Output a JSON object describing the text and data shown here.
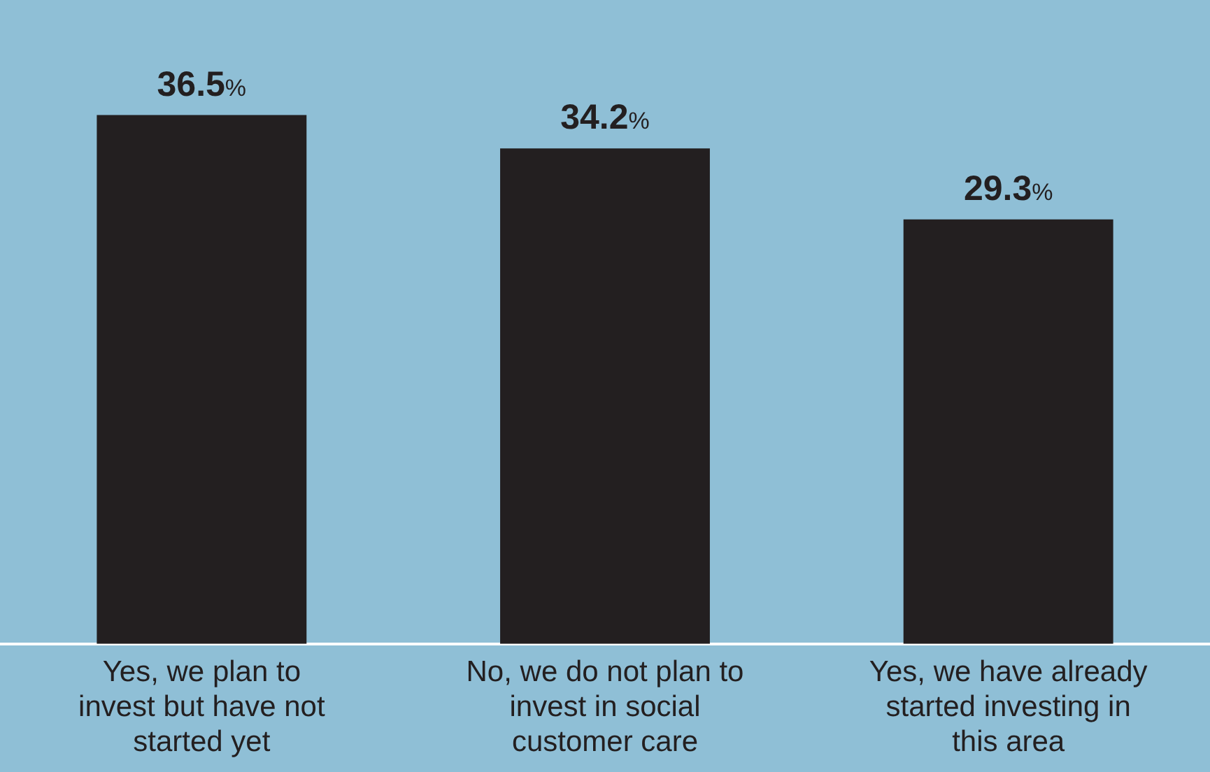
{
  "chart_data": {
    "type": "bar",
    "categories": [
      "Yes, we plan to invest but have not started yet",
      "No, we do not plan to invest in social customer care",
      "Yes, we have already started investing in this area"
    ],
    "values": [
      36.5,
      34.2,
      29.3
    ],
    "color": "#231f20",
    "value_labels": [
      "36.5%",
      "34.2%",
      "29.3%"
    ],
    "grid": false,
    "legend": false
  }
}
